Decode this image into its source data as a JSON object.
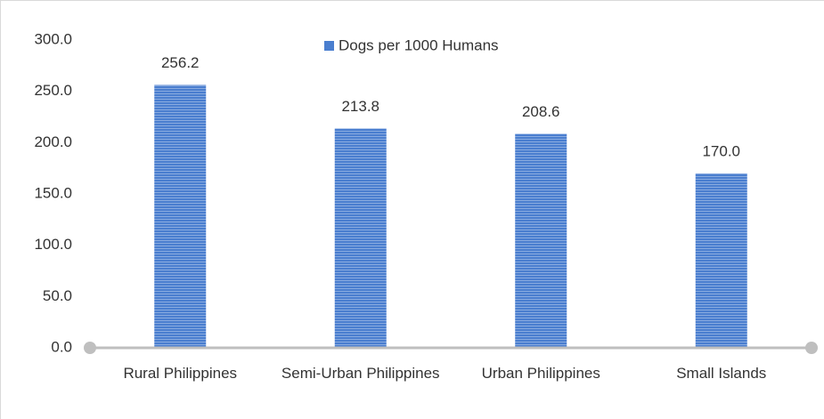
{
  "chart_data": {
    "type": "bar",
    "categories": [
      "Rural Philippines",
      "Semi-Urban Philippines",
      "Urban Philippines",
      "Small Islands"
    ],
    "series": [
      {
        "name": "Dogs per 1000 Humans",
        "color": "#4a7ecf",
        "values": [
          256.2,
          213.8,
          208.6,
          170.0
        ],
        "value_labels": [
          "256.2",
          "213.8",
          "208.6",
          "170.0"
        ]
      }
    ],
    "ylim": [
      0,
      300
    ],
    "yticks": [
      {
        "value": 0,
        "label": "0.0"
      },
      {
        "value": 50,
        "label": "50.0"
      },
      {
        "value": 100,
        "label": "100.0"
      },
      {
        "value": 150,
        "label": "150.0"
      },
      {
        "value": 200,
        "label": "200.0"
      },
      {
        "value": 250,
        "label": "250.0"
      },
      {
        "value": 300,
        "label": "300.0"
      }
    ],
    "grid": false,
    "legend": "top"
  }
}
